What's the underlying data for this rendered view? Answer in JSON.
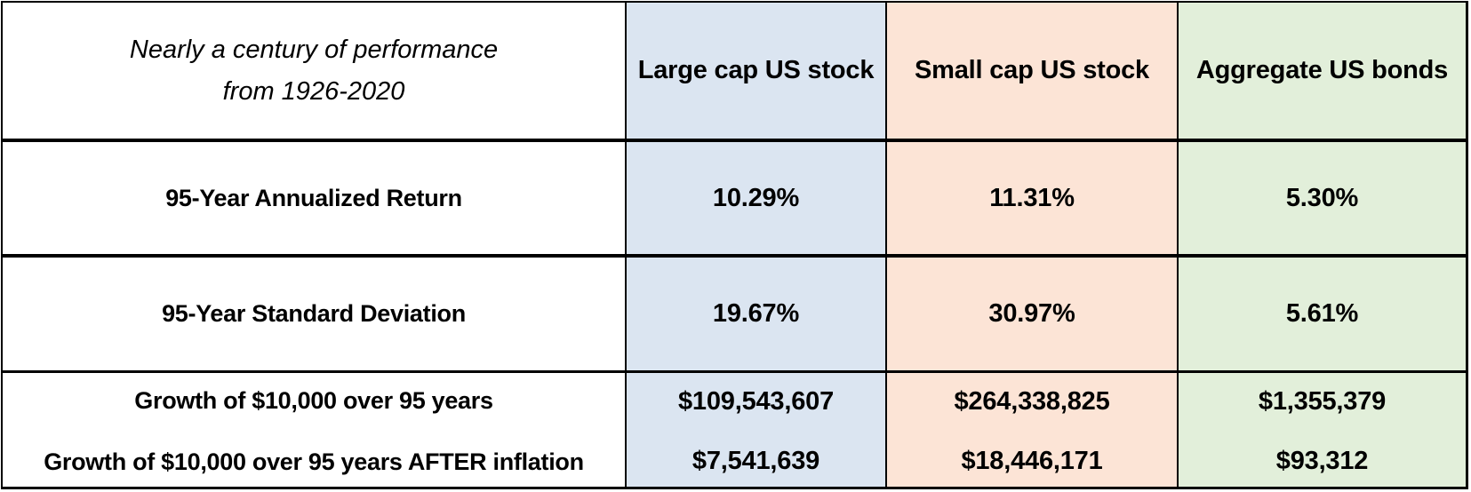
{
  "chart_data": {
    "type": "table",
    "title": "Nearly a century of performance from 1926-2020",
    "title_lines": [
      "Nearly a century of performance",
      "from 1926-2020"
    ],
    "columns": [
      "Large cap US stock",
      "Small cap US stock",
      "Aggregate US bonds"
    ],
    "rows": [
      {
        "label": "95-Year Annualized Return",
        "values": [
          "10.29%",
          "11.31%",
          "5.30%"
        ]
      },
      {
        "label": "95-Year Standard Deviation",
        "values": [
          "19.67%",
          "30.97%",
          "5.61%"
        ]
      },
      {
        "label": "Growth of $10,000 over 95 years",
        "values": [
          "$109,543,607",
          "$264,338,825",
          "$1,355,379"
        ]
      },
      {
        "label": "Growth of $10,000 over 95 years AFTER inflation",
        "values": [
          "$7,541,639",
          "$18,446,171",
          "$93,312"
        ]
      }
    ],
    "column_colors": {
      "large_cap_us_stock": "#dbe5f1",
      "small_cap_us_stock": "#fce4d6",
      "aggregate_us_bonds": "#e2efda"
    },
    "border_color": "#000000",
    "text_color": "#000000",
    "layout": {
      "grid": true,
      "legend_position": "none"
    }
  }
}
